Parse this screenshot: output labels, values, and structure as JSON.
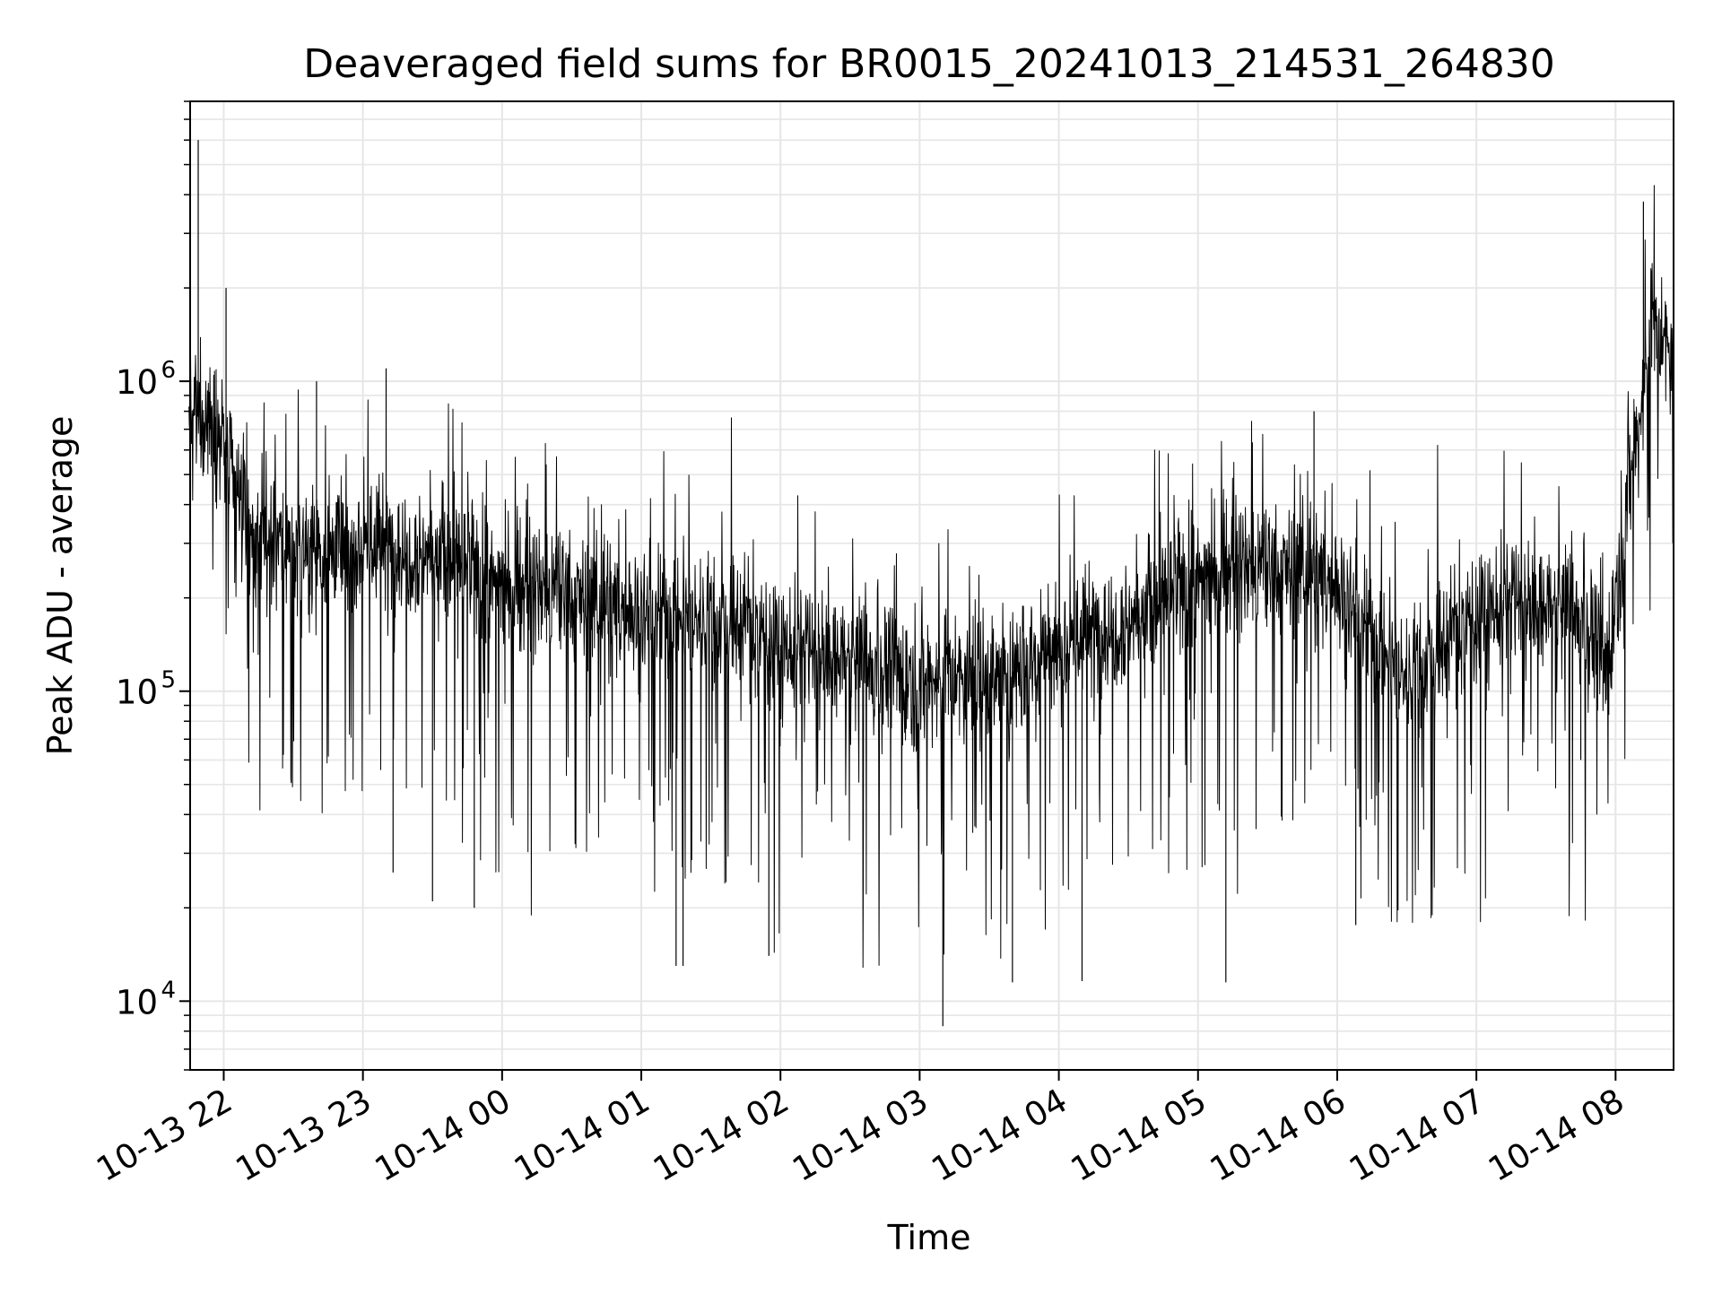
{
  "chart_data": {
    "type": "line",
    "title": "Deaveraged field sums for BR0015_20241013_214531_264830",
    "xlabel": "Time",
    "ylabel": "Peak ADU - average",
    "yscale": "log",
    "ylim": [
      6000,
      8000000
    ],
    "xlim": [
      "2024-10-13 21:45:31",
      "2024-10-14 08:25:00"
    ],
    "grid": true,
    "line_color": "#000000",
    "grid_color": "#e6e6e6",
    "x_ticks": [
      {
        "t": "2024-10-13 22:00",
        "label": "10-13 22"
      },
      {
        "t": "2024-10-13 23:00",
        "label": "10-13 23"
      },
      {
        "t": "2024-10-14 00:00",
        "label": "10-14 00"
      },
      {
        "t": "2024-10-14 01:00",
        "label": "10-14 01"
      },
      {
        "t": "2024-10-14 02:00",
        "label": "10-14 02"
      },
      {
        "t": "2024-10-14 03:00",
        "label": "10-14 03"
      },
      {
        "t": "2024-10-14 04:00",
        "label": "10-14 04"
      },
      {
        "t": "2024-10-14 05:00",
        "label": "10-14 05"
      },
      {
        "t": "2024-10-14 06:00",
        "label": "10-14 06"
      },
      {
        "t": "2024-10-14 07:00",
        "label": "10-14 07"
      },
      {
        "t": "2024-10-14 08:00",
        "label": "10-14 08"
      }
    ],
    "y_ticks": [
      {
        "value": 10000,
        "base": "10",
        "exp": "4"
      },
      {
        "value": 100000,
        "base": "10",
        "exp": "5"
      },
      {
        "value": 1000000,
        "base": "10",
        "exp": "6"
      }
    ],
    "series": [
      {
        "x": [
          "2024-10-13 21:45",
          "2024-10-13 21:50",
          "2024-10-13 21:55",
          "2024-10-13 22:00",
          "2024-10-13 22:05",
          "2024-10-13 22:10",
          "2024-10-13 22:20",
          "2024-10-13 22:30",
          "2024-10-13 22:45",
          "2024-10-13 23:00",
          "2024-10-13 23:15",
          "2024-10-13 23:30",
          "2024-10-13 23:45",
          "2024-10-14 00:00",
          "2024-10-14 00:15",
          "2024-10-14 00:30",
          "2024-10-14 00:45",
          "2024-10-14 01:00",
          "2024-10-14 01:15",
          "2024-10-14 01:30",
          "2024-10-14 01:45",
          "2024-10-14 02:00",
          "2024-10-14 02:15",
          "2024-10-14 02:30",
          "2024-10-14 02:45",
          "2024-10-14 03:00",
          "2024-10-14 03:15",
          "2024-10-14 03:30",
          "2024-10-14 03:45",
          "2024-10-14 04:00",
          "2024-10-14 04:15",
          "2024-10-14 04:30",
          "2024-10-14 04:45",
          "2024-10-14 05:00",
          "2024-10-14 05:15",
          "2024-10-14 05:30",
          "2024-10-14 05:45",
          "2024-10-14 06:00",
          "2024-10-14 06:15",
          "2024-10-14 06:30",
          "2024-10-14 06:45",
          "2024-10-14 07:00",
          "2024-10-14 07:15",
          "2024-10-14 07:30",
          "2024-10-14 07:45",
          "2024-10-14 07:50",
          "2024-10-14 07:55",
          "2024-10-14 08:00",
          "2024-10-14 08:05",
          "2024-10-14 08:10",
          "2024-10-14 08:15",
          "2024-10-14 08:25"
        ],
        "y": [
          700000,
          800000,
          750000,
          600000,
          450000,
          320000,
          300000,
          300000,
          290000,
          300000,
          290000,
          280000,
          240000,
          220000,
          210000,
          200000,
          190000,
          180000,
          175000,
          170000,
          165000,
          140000,
          130000,
          120000,
          115000,
          110000,
          105000,
          108000,
          120000,
          140000,
          155000,
          170000,
          190000,
          230000,
          250000,
          240000,
          250000,
          220000,
          150000,
          110000,
          140000,
          180000,
          190000,
          180000,
          170000,
          150000,
          110000,
          200000,
          450000,
          700000,
          1400000,
          1200000
        ],
        "spikes": [
          {
            "x": "2024-10-13 21:49",
            "y": 6000000
          },
          {
            "x": "2024-10-13 22:01",
            "y": 2000000
          },
          {
            "x": "2024-10-13 22:40",
            "y": 1000000
          },
          {
            "x": "2024-10-13 23:10",
            "y": 1100000
          },
          {
            "x": "2024-10-13 23:13",
            "y": 26000
          },
          {
            "x": "2024-10-13 23:30",
            "y": 21000
          },
          {
            "x": "2024-10-13 23:48",
            "y": 20000
          },
          {
            "x": "2024-10-14 01:15",
            "y": 13000
          },
          {
            "x": "2024-10-14 01:18",
            "y": 13000
          },
          {
            "x": "2024-10-14 01:55",
            "y": 14000
          },
          {
            "x": "2024-10-14 03:10",
            "y": 8300
          },
          {
            "x": "2024-10-14 03:40",
            "y": 11500
          },
          {
            "x": "2024-10-14 04:10",
            "y": 11600
          },
          {
            "x": "2024-10-14 05:12",
            "y": 11500
          },
          {
            "x": "2024-10-14 05:50",
            "y": 800000
          },
          {
            "x": "2024-10-14 06:08",
            "y": 17600
          },
          {
            "x": "2024-10-14 07:45",
            "y": 60000
          },
          {
            "x": "2024-10-14 08:12",
            "y": 3800000
          }
        ]
      }
    ]
  }
}
